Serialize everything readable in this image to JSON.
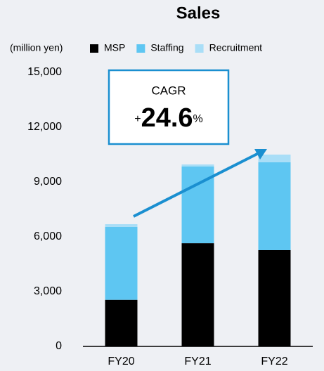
{
  "chart_data": {
    "type": "stacked_bar",
    "title": "Sales",
    "unit_label": "(million yen)",
    "categories": [
      "FY20",
      "FY21",
      "FY22"
    ],
    "series": [
      {
        "name": "MSP",
        "color": "#000000",
        "values": [
          2550,
          5650,
          5270
        ]
      },
      {
        "name": "Staffing",
        "color": "#5ec6f2",
        "values": [
          3990,
          4200,
          4810
        ]
      },
      {
        "name": "Recruitment",
        "color": "#a9def7",
        "values": [
          150,
          110,
          420
        ]
      }
    ],
    "ylim": [
      0,
      15000
    ],
    "yticks": [
      {
        "value": 0,
        "label": "0"
      },
      {
        "value": 3000,
        "label": "3,000"
      },
      {
        "value": 6000,
        "label": "6,000"
      },
      {
        "value": 9000,
        "label": "9,000"
      },
      {
        "value": 12000,
        "label": "12,000"
      },
      {
        "value": 15000,
        "label": "15,000"
      }
    ],
    "annotation": {
      "title": "CAGR",
      "sign": "+",
      "value": 24.6,
      "unit": "%"
    }
  }
}
